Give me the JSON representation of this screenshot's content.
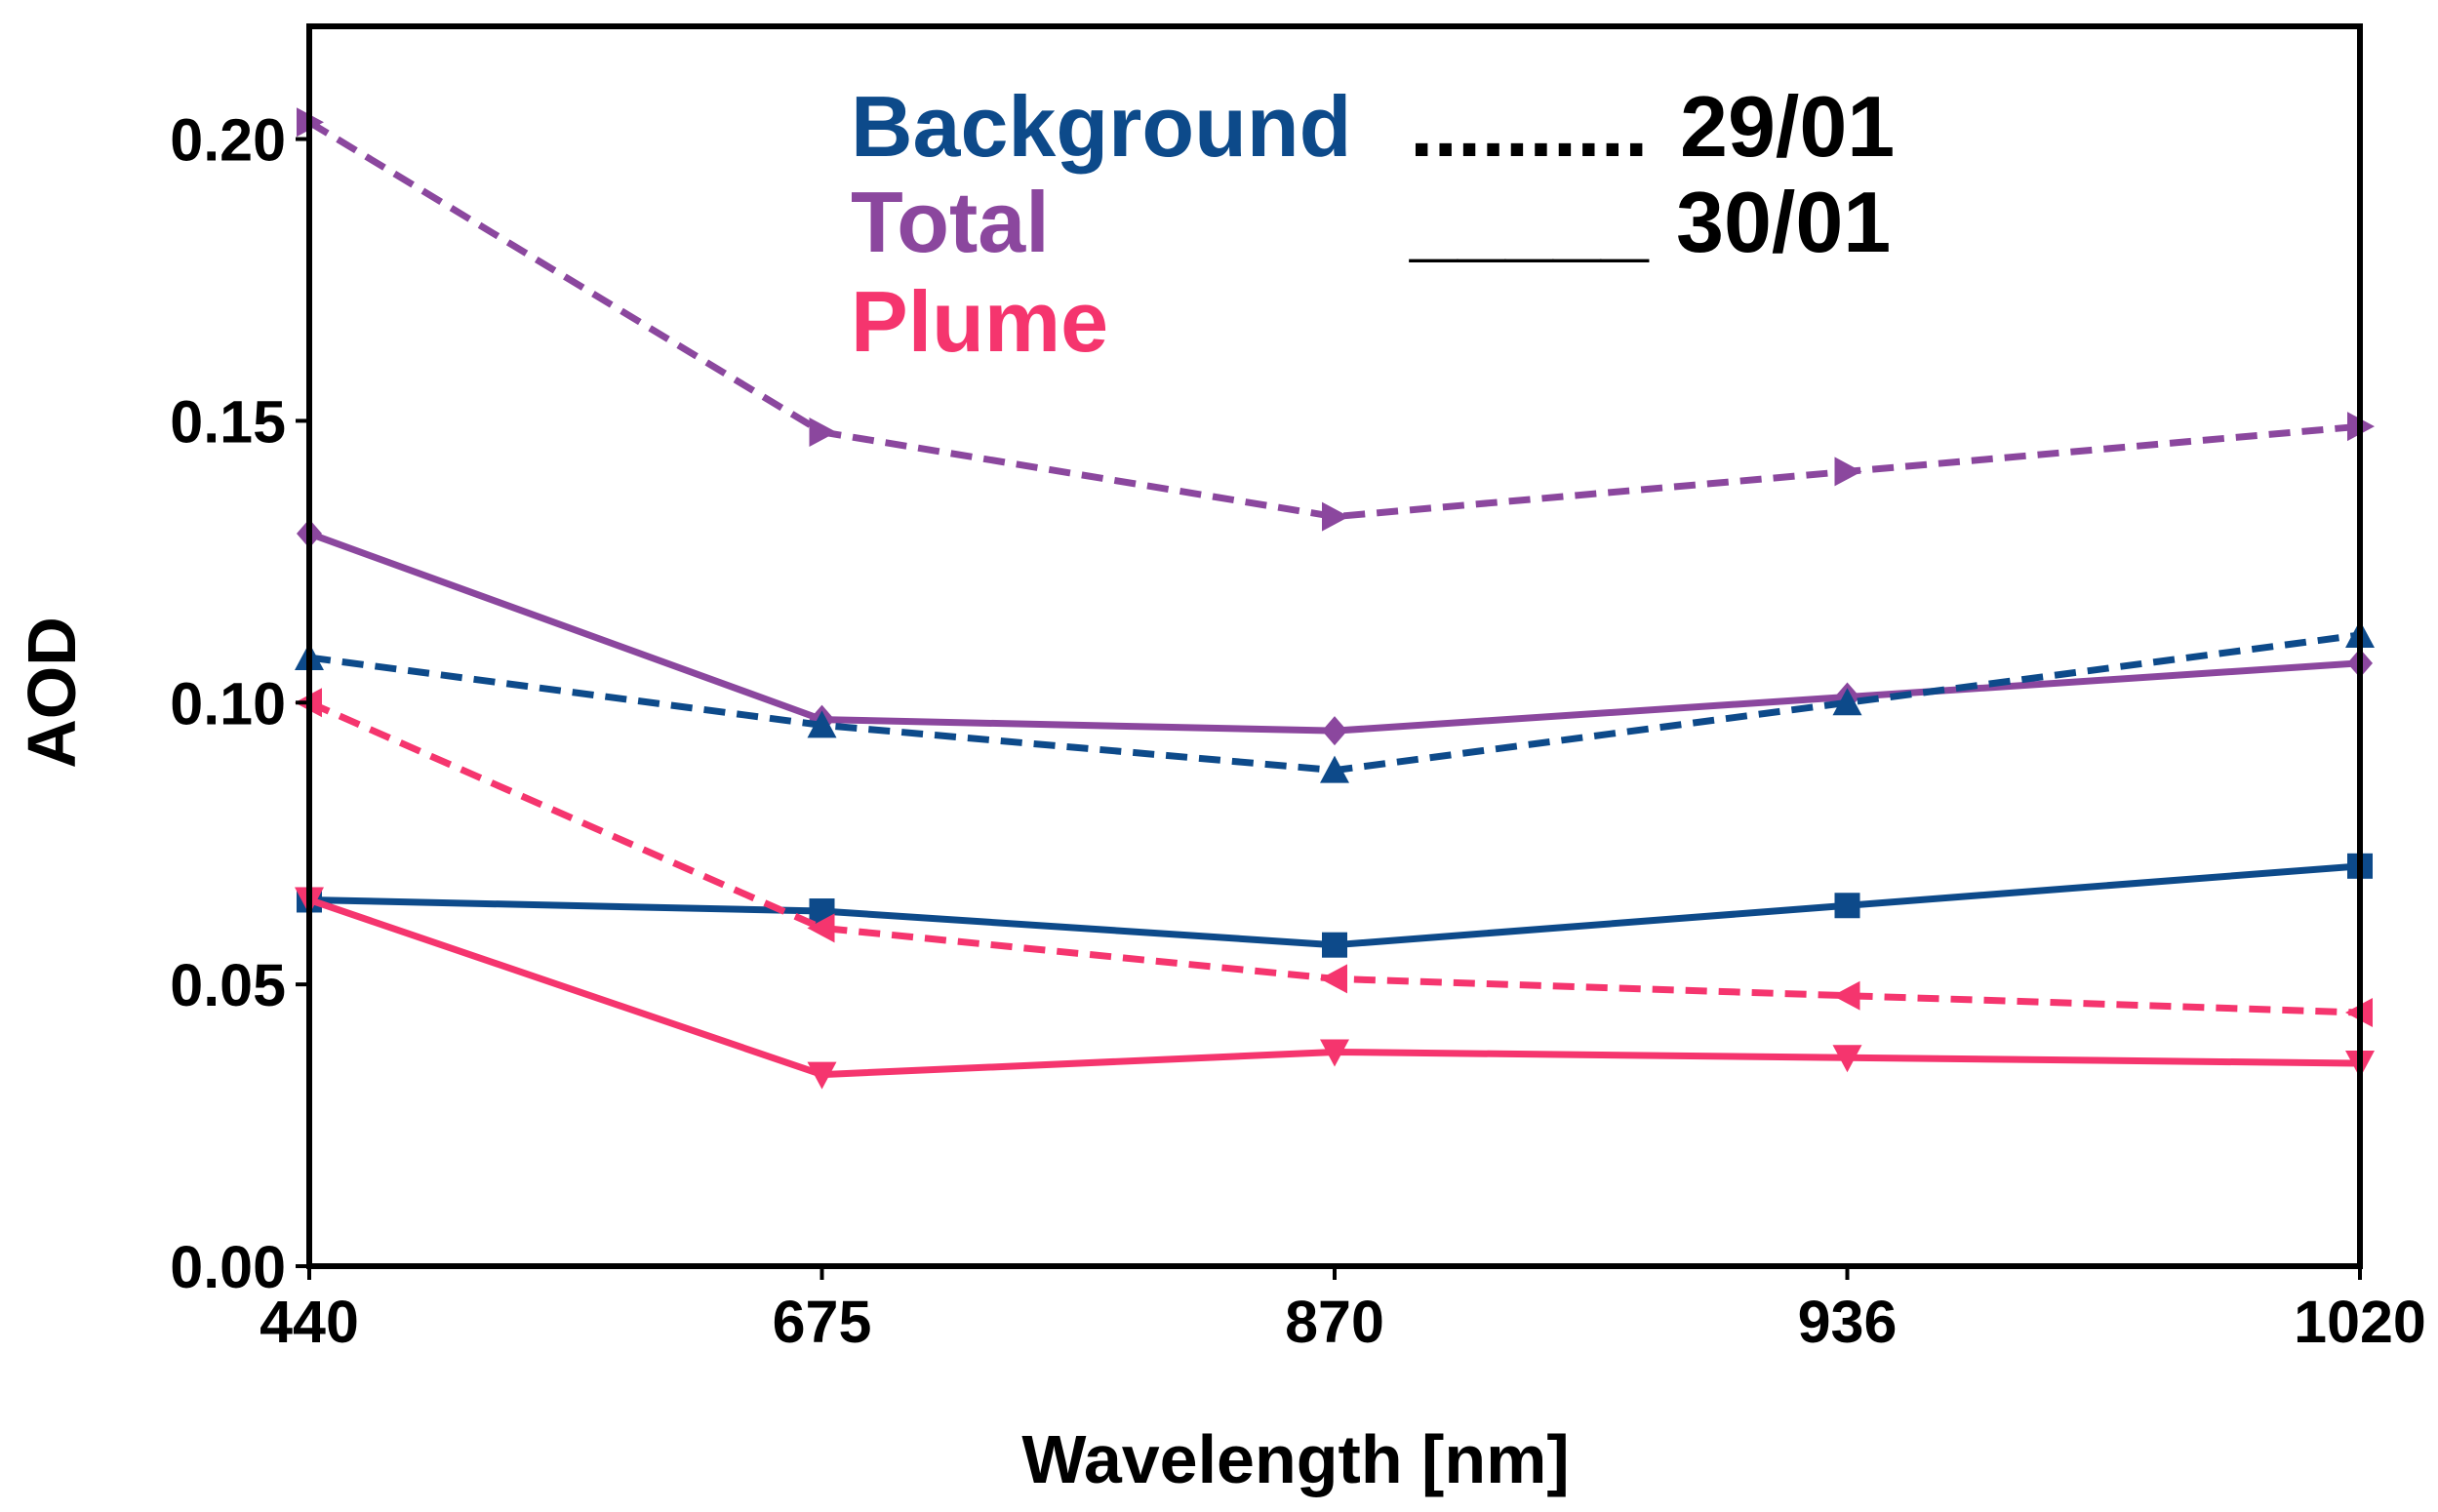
{
  "chart_data": {
    "type": "line",
    "title": "",
    "xlabel": "Wavelength [nm]",
    "ylabel": "AOD",
    "categories": [
      "440",
      "675",
      "870",
      "936",
      "1020"
    ],
    "ylim": [
      0,
      0.22
    ],
    "yticks": [
      "0.00",
      "0.05",
      "0.10",
      "0.15",
      "0.20"
    ],
    "ytick_values": [
      0,
      0.05,
      0.1,
      0.15,
      0.2
    ],
    "grid": false,
    "legend_groups": [
      {
        "label": "Background",
        "color": "#0d4a8a"
      },
      {
        "label": "Total",
        "color": "#8b479e"
      },
      {
        "label": "Plume",
        "color": "#f5356e"
      }
    ],
    "legend_styles": [
      {
        "symbol": "..........",
        "label": "29/01"
      },
      {
        "symbol": "_____",
        "label": "30/01"
      }
    ],
    "series": [
      {
        "name": "Total 29/01",
        "group": "Total",
        "date": "29/01",
        "dashed": true,
        "marker": "triangle-right",
        "color": "#8b479e",
        "values": [
          0.203,
          0.148,
          0.133,
          0.141,
          0.149
        ]
      },
      {
        "name": "Total 30/01",
        "group": "Total",
        "date": "30/01",
        "dashed": false,
        "marker": "diamond",
        "color": "#8b479e",
        "values": [
          0.13,
          0.097,
          0.095,
          0.101,
          0.107
        ]
      },
      {
        "name": "Background 29/01",
        "group": "Background",
        "date": "29/01",
        "dashed": true,
        "marker": "triangle-up",
        "color": "#0d4a8a",
        "values": [
          0.108,
          0.096,
          0.088,
          0.1,
          0.112
        ]
      },
      {
        "name": "Background 30/01",
        "group": "Background",
        "date": "30/01",
        "dashed": false,
        "marker": "square",
        "color": "#0d4a8a",
        "values": [
          0.065,
          0.063,
          0.057,
          0.064,
          0.071
        ]
      },
      {
        "name": "Plume 29/01",
        "group": "Plume",
        "date": "29/01",
        "dashed": true,
        "marker": "triangle-left",
        "color": "#f5356e",
        "values": [
          0.1,
          0.06,
          0.051,
          0.048,
          0.045
        ]
      },
      {
        "name": "Plume 30/01",
        "group": "Plume",
        "date": "30/01",
        "dashed": false,
        "marker": "triangle-down",
        "color": "#f5356e",
        "values": [
          0.065,
          0.034,
          0.038,
          0.037,
          0.036
        ]
      }
    ]
  }
}
